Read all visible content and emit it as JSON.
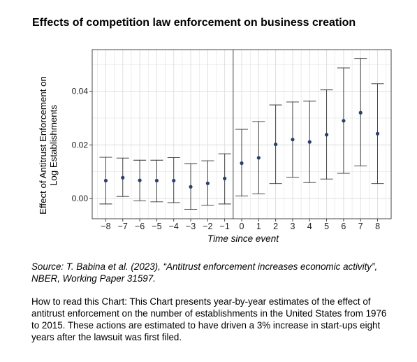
{
  "chart_data": {
    "type": "scatter",
    "title": "Effects of competition law enforcement on business creation",
    "xlabel": "Time since event",
    "ylabel_lines": [
      "Effect of Antitrust Enforcement on",
      "Log Establishments"
    ],
    "xlim": [
      -8.8,
      8.8
    ],
    "ylim": [
      -0.0075,
      0.0555
    ],
    "event_line_x": -0.5,
    "x_ticks": [
      {
        "value": -8,
        "label": "−8"
      },
      {
        "value": -7,
        "label": "−7"
      },
      {
        "value": -6,
        "label": "−6"
      },
      {
        "value": -5,
        "label": "−5"
      },
      {
        "value": -4,
        "label": "−4"
      },
      {
        "value": -3,
        "label": "−3"
      },
      {
        "value": -2,
        "label": "−2"
      },
      {
        "value": -1,
        "label": "−1"
      },
      {
        "value": 0,
        "label": "0"
      },
      {
        "value": 1,
        "label": "1"
      },
      {
        "value": 2,
        "label": "2"
      },
      {
        "value": 3,
        "label": "3"
      },
      {
        "value": 4,
        "label": "4"
      },
      {
        "value": 5,
        "label": "5"
      },
      {
        "value": 6,
        "label": "6"
      },
      {
        "value": 7,
        "label": "7"
      },
      {
        "value": 8,
        "label": "8"
      }
    ],
    "y_ticks": [
      {
        "value": 0.0,
        "label": "0.00"
      },
      {
        "value": 0.02,
        "label": "0.02"
      },
      {
        "value": 0.04,
        "label": "0.04"
      }
    ],
    "grid": true,
    "points": [
      {
        "x": -8,
        "y": 0.0067,
        "lo": -0.002,
        "hi": 0.0154
      },
      {
        "x": -7,
        "y": 0.0078,
        "lo": 0.0008,
        "hi": 0.0151
      },
      {
        "x": -6,
        "y": 0.0068,
        "lo": -0.0008,
        "hi": 0.0143
      },
      {
        "x": -5,
        "y": 0.0067,
        "lo": -0.0012,
        "hi": 0.0143
      },
      {
        "x": -4,
        "y": 0.0067,
        "lo": -0.0015,
        "hi": 0.0153
      },
      {
        "x": -3,
        "y": 0.0044,
        "lo": -0.004,
        "hi": 0.013
      },
      {
        "x": -2,
        "y": 0.0057,
        "lo": -0.0025,
        "hi": 0.0141
      },
      {
        "x": -1,
        "y": 0.0075,
        "lo": -0.002,
        "hi": 0.0167
      },
      {
        "x": 0,
        "y": 0.0132,
        "lo": 0.001,
        "hi": 0.0258
      },
      {
        "x": 1,
        "y": 0.0152,
        "lo": 0.0018,
        "hi": 0.0287
      },
      {
        "x": 2,
        "y": 0.0202,
        "lo": 0.0056,
        "hi": 0.0349
      },
      {
        "x": 3,
        "y": 0.022,
        "lo": 0.008,
        "hi": 0.036
      },
      {
        "x": 4,
        "y": 0.0211,
        "lo": 0.006,
        "hi": 0.0363
      },
      {
        "x": 5,
        "y": 0.0238,
        "lo": 0.0073,
        "hi": 0.0405
      },
      {
        "x": 6,
        "y": 0.029,
        "lo": 0.0094,
        "hi": 0.0487
      },
      {
        "x": 7,
        "y": 0.032,
        "lo": 0.0122,
        "hi": 0.0522
      },
      {
        "x": 8,
        "y": 0.0242,
        "lo": 0.0056,
        "hi": 0.0428
      }
    ],
    "colors": {
      "point": "#2b3f6b",
      "errorbar": "#333333",
      "grid": "#dcdcdc",
      "axis": "#333333"
    }
  },
  "source_text": "Source: T. Babina et al. (2023), “Antitrust enforcement increases economic activity”, NBER, Working Paper 31597.",
  "howto_text": "How to read this Chart: This Chart presents year-by-year estimates of the effect of antitrust enforcement on the number of establishments in the United States from 1976 to 2015. These actions are estimated to have driven a 3% increase in start-ups eight years after the lawsuit was first filed."
}
